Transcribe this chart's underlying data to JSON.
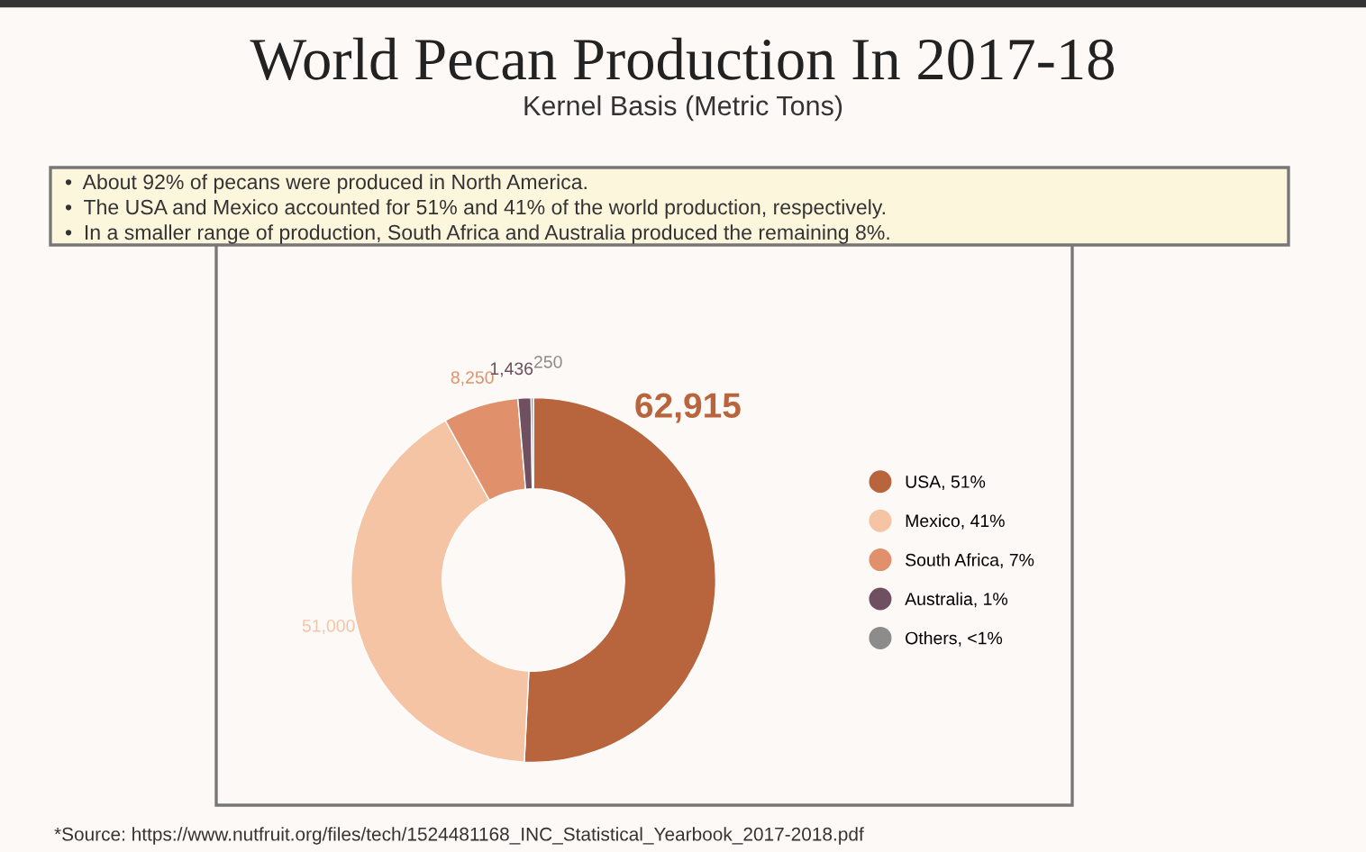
{
  "chart_data": {
    "type": "donut",
    "title": "World Pecan Production In 2017-18",
    "subtitle": "Kernel Basis (Metric Tons)",
    "categories": [
      "USA, 51%",
      "Mexico, 41%",
      "South Africa, 7%",
      "Australia, 1%",
      "Others, <1%"
    ],
    "values": [
      62915,
      51000,
      8250,
      1436,
      250
    ],
    "value_labels": [
      "62,915",
      "51,000",
      "8,250",
      "1,436",
      "250"
    ],
    "colors": [
      "#b8643c",
      "#f4c4a4",
      "#e0906a",
      "#6e5060",
      "#8c8c8c"
    ],
    "legend": "right",
    "annotations": [
      "•  About 92% of pecans were produced in North America.",
      "•  The USA and Mexico accounted for 51% and 41% of the world production, respectively.",
      "•  In a smaller range of production, South Africa and Australia produced the remaining 8%.",
      "*Source: https://www.nutfruit.org/files/tech/1524481168_INC_Statistical_Yearbook_2017-2018.pdf"
    ]
  }
}
